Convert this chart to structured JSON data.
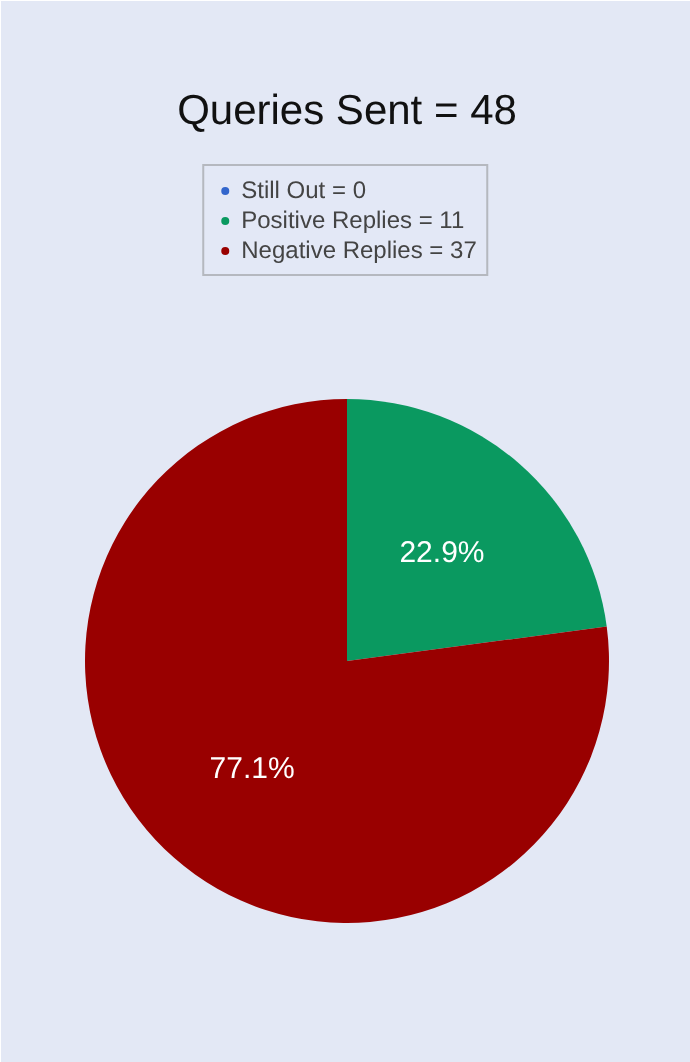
{
  "chart_data": {
    "type": "pie",
    "title": "Queries Sent = 48",
    "categories": [
      "Still Out = 0",
      "Positive Replies = 11",
      "Negative Replies = 37"
    ],
    "values": [
      0,
      22.9,
      77.1
    ],
    "colors": [
      "#3366cc",
      "#0a9960",
      "#990000"
    ],
    "value_labels": [
      null,
      "22.9%",
      "77.1%"
    ],
    "legend": "top"
  }
}
